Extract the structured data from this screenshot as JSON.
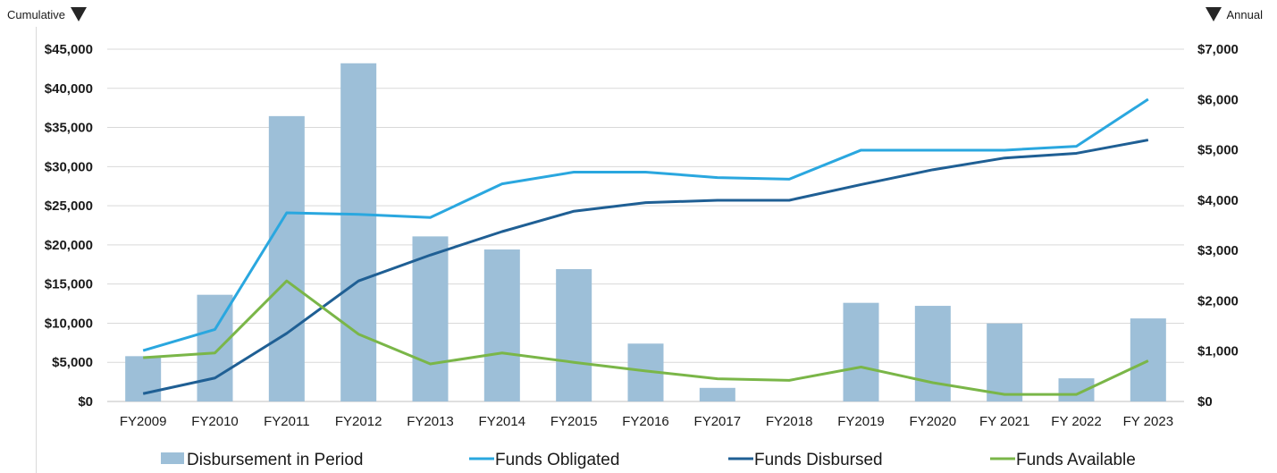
{
  "header": {
    "left_label": "Cumulative",
    "right_label": "Annual"
  },
  "colors": {
    "bar": "#9dbfd8",
    "funds_obligated": "#2aa7df",
    "funds_disbursed": "#1f5f94",
    "funds_available": "#7ab648",
    "grid": "#d9d9d9",
    "text": "#1a1a1a"
  },
  "chart_data": {
    "type": "bar",
    "categories": [
      "FY2009",
      "FY2010",
      "FY2011",
      "FY2012",
      "FY2013",
      "FY2014",
      "FY2015",
      "FY2016",
      "FY2017",
      "FY2018",
      "FY2019",
      "FY2020",
      "FY 2021",
      "FY 2022",
      "FY 2023"
    ],
    "y_left": {
      "label": "Cumulative",
      "ylim": [
        0,
        45000
      ],
      "ticks": [
        0,
        5000,
        10000,
        15000,
        20000,
        25000,
        30000,
        35000,
        40000,
        45000
      ],
      "tick_labels": [
        "$0",
        "$5,000",
        "$10,000",
        "$15,000",
        "$20,000",
        "$25,000",
        "$30,000",
        "$35,000",
        "$40,000",
        "$45,000"
      ]
    },
    "y_right": {
      "label": "Annual",
      "ylim": [
        0,
        7000
      ],
      "ticks": [
        0,
        1000,
        2000,
        3000,
        4000,
        5000,
        6000,
        7000
      ],
      "tick_labels": [
        "$0",
        "$1,000",
        "$2,000",
        "$3,000",
        "$4,000",
        "$5,000",
        "$6,000",
        "$7,000"
      ]
    },
    "grid": true,
    "legend_position": "bottom",
    "series": [
      {
        "name": "Disbursement in Period",
        "type": "bar",
        "axis": "right",
        "color": "#9dbfd8",
        "values": [
          900,
          2120,
          5670,
          6720,
          3280,
          3020,
          2630,
          1150,
          270,
          0,
          1960,
          1900,
          1550,
          460,
          1650
        ]
      },
      {
        "name": "Funds Obligated",
        "type": "line",
        "axis": "left",
        "color": "#2aa7df",
        "values": [
          6500,
          9200,
          24100,
          23900,
          23500,
          27800,
          29300,
          29300,
          28600,
          28400,
          32100,
          32100,
          32100,
          32600,
          38600
        ]
      },
      {
        "name": "Funds Disbursed",
        "type": "line",
        "axis": "left",
        "color": "#1f5f94",
        "values": [
          1000,
          3000,
          8700,
          15400,
          18700,
          21700,
          24300,
          25400,
          25700,
          25700,
          27700,
          29600,
          31100,
          31700,
          33400
        ]
      },
      {
        "name": "Funds Available",
        "type": "line",
        "axis": "left",
        "color": "#7ab648",
        "values": [
          5600,
          6200,
          15400,
          8600,
          4800,
          6200,
          5000,
          3900,
          2900,
          2700,
          4400,
          2400,
          900,
          900,
          5200
        ]
      }
    ]
  }
}
